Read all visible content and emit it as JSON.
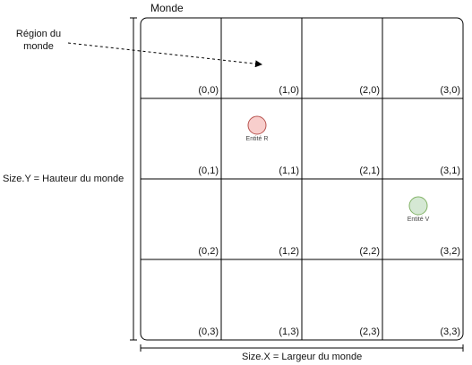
{
  "world_title": "Monde",
  "region_label": "Région du monde",
  "height_label": "Size.Y = Hauteur du monde",
  "width_label": "Size.X = Largeur du monde",
  "grid": {
    "rows": [
      [
        "(0,0)",
        "(1,0)",
        "(2,0)",
        "(3,0)"
      ],
      [
        "(0,1)",
        "(1,1)",
        "(2,1)",
        "(3,1)"
      ],
      [
        "(0,2)",
        "(1,2)",
        "(2,2)",
        "(3,2)"
      ],
      [
        "(0,3)",
        "(1,3)",
        "(2,3)",
        "(3,3)"
      ]
    ]
  },
  "entities": [
    {
      "name": "Entité R",
      "cell": [
        1,
        1
      ],
      "fill": "#f8cecc",
      "stroke": "#b85450"
    },
    {
      "name": "Entité V",
      "cell": [
        3,
        2
      ],
      "fill": "#d5e8d4",
      "stroke": "#82b366"
    }
  ]
}
